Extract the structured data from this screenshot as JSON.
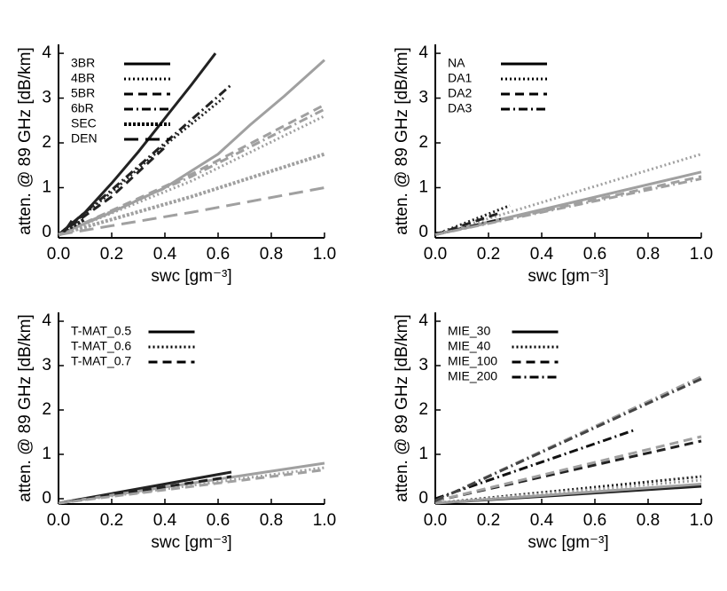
{
  "chart_data": [
    {
      "type": "line",
      "xlabel": "swc [gm⁻³]",
      "ylabel": "atten. @ 89 GHz [dB/km]",
      "xlim": [
        0,
        1
      ],
      "ylim": [
        -0.12,
        4.2
      ],
      "xticks": [
        {
          "value": 0,
          "label": "0.0"
        },
        0.2,
        0.4,
        0.6,
        0.8,
        {
          "value": 1,
          "label": "1.0"
        }
      ],
      "yticks": [
        0,
        1,
        2,
        3,
        4
      ],
      "legend": "upper left",
      "series": [
        {
          "name": "3BR",
          "style": "solid",
          "lines": [
            {
              "color": "#222222",
              "x": [
                0,
                0.1,
                0.2,
                0.3,
                0.4,
                0.5,
                0.59
              ],
              "values": [
                -0.05,
                0.45,
                1.1,
                1.8,
                2.55,
                3.3,
                4.0
              ]
            },
            {
              "color": "#a0a0a0",
              "x": [
                0,
                0.2,
                0.4,
                0.6,
                0.72,
                0.85,
                1.0
              ],
              "values": [
                -0.05,
                0.45,
                1.0,
                1.75,
                2.4,
                3.05,
                3.85
              ]
            }
          ]
        },
        {
          "name": "4BR",
          "style": "dotted",
          "lines": [
            {
              "color": "#222222",
              "x": [
                0,
                0.2,
                0.4,
                0.62
              ],
              "values": [
                -0.05,
                0.9,
                1.95,
                3.0
              ]
            },
            {
              "color": "#a0a0a0",
              "x": [
                0,
                0.5,
                1.0
              ],
              "values": [
                -0.05,
                1.15,
                2.6
              ]
            }
          ]
        },
        {
          "name": "5BR",
          "style": "dashed",
          "lines": [
            {
              "color": "#222222",
              "x": [
                0,
                0.2,
                0.4
              ],
              "values": [
                -0.05,
                0.8,
                1.9
              ]
            },
            {
              "color": "#a0a0a0",
              "x": [
                0,
                0.5,
                1.0
              ],
              "values": [
                -0.05,
                1.3,
                2.85
              ]
            }
          ]
        },
        {
          "name": "6bR",
          "style": "dashdot",
          "lines": [
            {
              "color": "#222222",
              "x": [
                0,
                0.2,
                0.4,
                0.65
              ],
              "values": [
                -0.05,
                0.95,
                2.0,
                3.3
              ]
            },
            {
              "color": "#a0a0a0",
              "x": [
                0,
                0.5,
                1.0
              ],
              "values": [
                -0.05,
                1.25,
                2.75
              ]
            }
          ]
        },
        {
          "name": "SEC",
          "style": "densedot",
          "lines": [
            {
              "color": "#222222",
              "x": [
                0,
                0.1
              ],
              "values": [
                -0.05,
                0.3
              ]
            },
            {
              "color": "#a0a0a0",
              "x": [
                0,
                0.5,
                1.0
              ],
              "values": [
                -0.05,
                0.8,
                1.75
              ]
            }
          ]
        },
        {
          "name": "DEN",
          "style": "longdash",
          "lines": [
            {
              "color": "#222222",
              "x": [
                0.02,
                0.06
              ],
              "values": [
                0,
                0.35
              ]
            },
            {
              "color": "#a0a0a0",
              "x": [
                0,
                0.5,
                1.0
              ],
              "values": [
                -0.05,
                0.45,
                1.0
              ]
            }
          ]
        }
      ]
    },
    {
      "type": "line",
      "xlabel": "swc [gm⁻³]",
      "ylabel": "atten. @ 89 GHz [dB/km]",
      "xlim": [
        0,
        1
      ],
      "ylim": [
        -0.12,
        4.2
      ],
      "xticks": [
        {
          "value": 0,
          "label": "0.0"
        },
        0.2,
        0.4,
        0.6,
        0.8,
        {
          "value": 1,
          "label": "1.0"
        }
      ],
      "yticks": [
        0,
        1,
        2,
        3,
        4
      ],
      "legend": "upper left",
      "series": [
        {
          "name": "NA",
          "style": "solid",
          "lines": [
            {
              "color": "#222222",
              "x": [
                0,
                0.25
              ],
              "values": [
                -0.05,
                0.3
              ]
            },
            {
              "color": "#a0a0a0",
              "x": [
                0,
                1.0
              ],
              "values": [
                -0.05,
                1.35
              ]
            }
          ]
        },
        {
          "name": "DA1",
          "style": "dotted",
          "lines": [
            {
              "color": "#222222",
              "x": [
                0,
                0.28
              ],
              "values": [
                -0.05,
                0.6
              ]
            },
            {
              "color": "#a0a0a0",
              "x": [
                0,
                1.0
              ],
              "values": [
                -0.05,
                1.75
              ]
            }
          ]
        },
        {
          "name": "DA2",
          "style": "dashed",
          "lines": [
            {
              "color": "#222222",
              "x": [
                0,
                0.25
              ],
              "values": [
                -0.05,
                0.45
              ]
            },
            {
              "color": "#a0a0a0",
              "x": [
                0,
                1.0
              ],
              "values": [
                -0.05,
                1.25
              ]
            }
          ]
        },
        {
          "name": "DA3",
          "style": "dashdot",
          "lines": [
            {
              "color": "#222222",
              "x": [
                0,
                0.25
              ],
              "values": [
                -0.05,
                0.3
              ]
            },
            {
              "color": "#a0a0a0",
              "x": [
                0,
                1.0
              ],
              "values": [
                -0.05,
                1.2
              ]
            }
          ]
        }
      ]
    },
    {
      "type": "line",
      "xlabel": "swc [gm⁻³]",
      "ylabel": "atten. @ 89 GHz [dB/km]",
      "xlim": [
        0,
        1
      ],
      "ylim": [
        -0.12,
        4.2
      ],
      "xticks": [
        {
          "value": 0,
          "label": "0.0"
        },
        0.2,
        0.4,
        0.6,
        0.8,
        {
          "value": 1,
          "label": "1.0"
        }
      ],
      "yticks": [
        0,
        1,
        2,
        3,
        4
      ],
      "legend": "upper left",
      "series": [
        {
          "name": "T-MAT_0.5",
          "style": "solid",
          "lines": [
            {
              "color": "#222222",
              "x": [
                0,
                0.65
              ],
              "values": [
                -0.1,
                0.6
              ]
            },
            {
              "color": "#a0a0a0",
              "x": [
                0,
                1.0
              ],
              "values": [
                -0.1,
                0.8
              ]
            }
          ]
        },
        {
          "name": "T-MAT_0.6",
          "style": "dotted",
          "lines": [
            {
              "color": "#a0a0a0",
              "x": [
                0,
                1.0
              ],
              "values": [
                -0.1,
                0.7
              ]
            }
          ]
        },
        {
          "name": "T-MAT_0.7",
          "style": "dashed",
          "lines": [
            {
              "color": "#222222",
              "x": [
                0,
                0.65
              ],
              "values": [
                -0.1,
                0.5
              ]
            },
            {
              "color": "#a0a0a0",
              "x": [
                0,
                1.0
              ],
              "values": [
                -0.1,
                0.65
              ]
            }
          ]
        }
      ]
    },
    {
      "type": "line",
      "xlabel": "swc [gm⁻³]",
      "ylabel": "atten. @ 89 GHz [dB/km]",
      "xlim": [
        0,
        1
      ],
      "ylim": [
        -0.12,
        4.2
      ],
      "xticks": [
        {
          "value": 0,
          "label": "0.0"
        },
        0.2,
        0.4,
        0.6,
        0.8,
        {
          "value": 1,
          "label": "1.0"
        }
      ],
      "yticks": [
        0,
        1,
        2,
        3,
        4
      ],
      "legend": "upper left",
      "series": [
        {
          "name": "MIE_30",
          "style": "solid",
          "lines": [
            {
              "color": "#222222",
              "x": [
                0,
                1.0
              ],
              "values": [
                -0.1,
                0.28
              ]
            },
            {
              "color": "#a0a0a0",
              "x": [
                0,
                1.0
              ],
              "values": [
                -0.1,
                0.33
              ]
            }
          ]
        },
        {
          "name": "MIE_40",
          "style": "dotted",
          "lines": [
            {
              "color": "#222222",
              "x": [
                0,
                1.0
              ],
              "values": [
                -0.1,
                0.5
              ]
            },
            {
              "color": "#a0a0a0",
              "x": [
                0,
                1.0
              ],
              "values": [
                -0.1,
                0.42
              ]
            }
          ]
        },
        {
          "name": "MIE_100",
          "style": "dashed",
          "lines": [
            {
              "color": "#222222",
              "x": [
                0,
                1.0
              ],
              "values": [
                -0.05,
                1.3
              ]
            },
            {
              "color": "#a0a0a0",
              "x": [
                0,
                1.0
              ],
              "values": [
                -0.05,
                1.4
              ]
            }
          ]
        },
        {
          "name": "MIE_200",
          "style": "dashdot",
          "lines": [
            {
              "color": "#111111",
              "x": [
                0,
                0.75
              ],
              "values": [
                0,
                1.55
              ]
            },
            {
              "color": "#a0a0a0",
              "x": [
                0,
                1.0
              ],
              "values": [
                -0.05,
                2.75
              ]
            },
            {
              "color": "#444444",
              "x": [
                0,
                1.0
              ],
              "values": [
                -0.05,
                2.7
              ]
            }
          ]
        }
      ]
    }
  ]
}
